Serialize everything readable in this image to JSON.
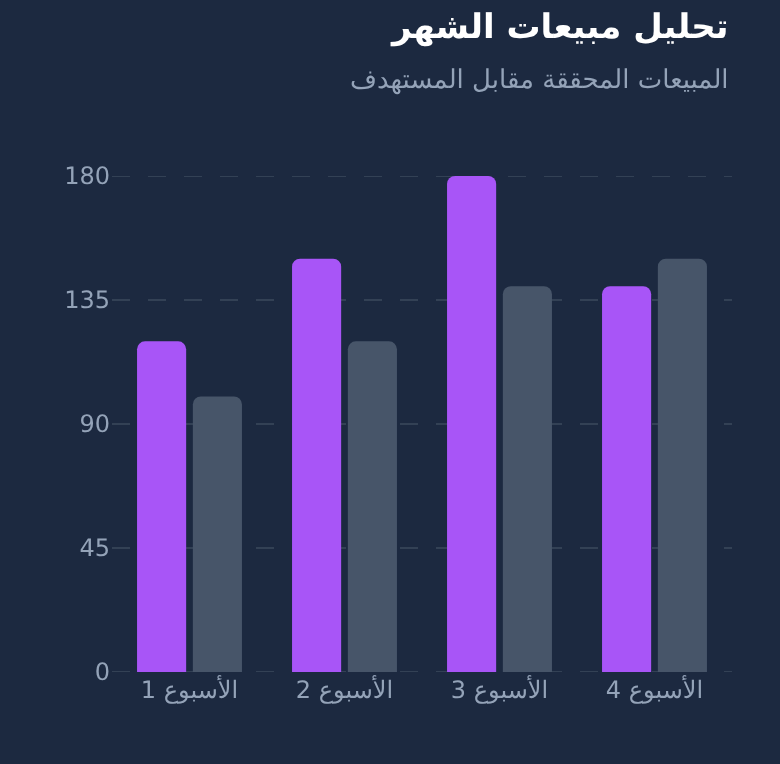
{
  "chart_data": {
    "type": "bar",
    "title": "تحليل مبيعات الشهر",
    "subtitle": "المبيعات المحققة مقابل المستهدف",
    "categories": [
      "الأسبوع 1",
      "الأسبوع 2",
      "الأسبوع 3",
      "الأسبوع 4"
    ],
    "series": [
      {
        "color": "#a855f7",
        "values": [
          120,
          150,
          180,
          140
        ]
      },
      {
        "color": "#475569",
        "values": [
          100,
          120,
          140,
          150
        ]
      }
    ],
    "ylim": [
      0,
      180
    ],
    "yticks": [
      0,
      45,
      90,
      135,
      180
    ],
    "grid": "y"
  }
}
